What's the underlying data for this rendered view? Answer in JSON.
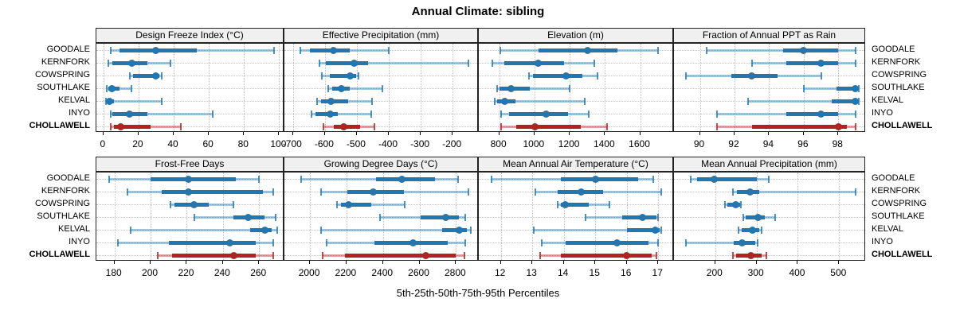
{
  "title": "Annual Climate: sibling",
  "caption": "5th-25th-50th-75th-95th Percentiles",
  "sites": [
    "GOODALE",
    "KERNFORK",
    "COWSPRING",
    "SOUTHLAKE",
    "KELVAL",
    "INYO",
    "CHOLLAWELL"
  ],
  "highlight_site": "CHOLLAWELL",
  "colors": {
    "series": "#1f77b4",
    "highlight": "#b22222",
    "strip_bg": "#f0f0f0",
    "panel_border": "#222222",
    "grid": "#c3c3c3",
    "background": "#ffffff",
    "text": "#000000"
  },
  "chart_data": [
    {
      "type": "dot-whisker",
      "title": "Design Freeze Index (°C)",
      "percentiles": [
        5,
        25,
        50,
        75,
        95
      ],
      "xlim": [
        -4,
        103
      ],
      "ticks": [
        0,
        20,
        40,
        60,
        80,
        100
      ],
      "rows": [
        {
          "site": "GOODALE",
          "values": [
            4,
            9,
            30,
            53,
            97
          ]
        },
        {
          "site": "KERNFORK",
          "values": [
            3,
            5,
            16,
            25,
            38
          ]
        },
        {
          "site": "COWSPRING",
          "values": [
            15,
            17,
            30,
            32,
            33
          ]
        },
        {
          "site": "SOUTHLAKE",
          "values": [
            2,
            3,
            5,
            9,
            16
          ]
        },
        {
          "site": "KELVAL",
          "values": [
            1.5,
            2.5,
            3.5,
            6,
            33
          ]
        },
        {
          "site": "INYO",
          "values": [
            4,
            5,
            15,
            25,
            62
          ]
        },
        {
          "site": "CHOLLAWELL",
          "values": [
            4,
            6,
            10,
            27,
            44
          ]
        }
      ]
    },
    {
      "type": "dot-whisker",
      "title": "Effective Precipitation (mm)",
      "percentiles": [
        5,
        25,
        50,
        75,
        95
      ],
      "xlim": [
        -727,
        -118
      ],
      "ticks": [
        -700,
        -600,
        -500,
        -400,
        -300,
        -200
      ],
      "rows": [
        {
          "site": "GOODALE",
          "values": [
            -678,
            -648,
            -573,
            -523,
            -400
          ]
        },
        {
          "site": "KERNFORK",
          "values": [
            -617,
            -597,
            -508,
            -464,
            -150
          ]
        },
        {
          "site": "COWSPRING",
          "values": [
            -610,
            -585,
            -520,
            -502,
            -496
          ]
        },
        {
          "site": "SOUTHLAKE",
          "values": [
            -590,
            -578,
            -549,
            -522,
            -420
          ]
        },
        {
          "site": "KELVAL",
          "values": [
            -625,
            -613,
            -580,
            -527,
            -452
          ]
        },
        {
          "site": "INYO",
          "values": [
            -642,
            -630,
            -583,
            -560,
            -456
          ]
        },
        {
          "site": "CHOLLAWELL",
          "values": [
            -605,
            -572,
            -540,
            -490,
            -445
          ]
        }
      ]
    },
    {
      "type": "dot-whisker",
      "title": "Elevation (m)",
      "percentiles": [
        5,
        25,
        50,
        75,
        95
      ],
      "xlim": [
        684,
        1792
      ],
      "ticks": [
        800,
        1000,
        1200,
        1400,
        1600
      ],
      "rows": [
        {
          "site": "GOODALE",
          "values": [
            805,
            1025,
            1300,
            1470,
            1700
          ]
        },
        {
          "site": "KERNFORK",
          "values": [
            760,
            830,
            1020,
            1170,
            1340
          ]
        },
        {
          "site": "COWSPRING",
          "values": [
            970,
            990,
            1180,
            1270,
            1360
          ]
        },
        {
          "site": "SOUTHLAKE",
          "values": [
            790,
            800,
            865,
            975,
            1200
          ]
        },
        {
          "site": "KELVAL",
          "values": [
            775,
            790,
            830,
            890,
            1285
          ]
        },
        {
          "site": "INYO",
          "values": [
            810,
            855,
            1065,
            1190,
            1310
          ]
        },
        {
          "site": "CHOLLAWELL",
          "values": [
            810,
            895,
            1005,
            1265,
            1410
          ]
        }
      ]
    },
    {
      "type": "dot-whisker",
      "title": "Fraction of Annual PPT as Rain",
      "percentiles": [
        5,
        25,
        50,
        75,
        95
      ],
      "xlim": [
        88.5,
        99.6
      ],
      "ticks": [
        90,
        92,
        94,
        96,
        98
      ],
      "rows": [
        {
          "site": "GOODALE",
          "values": [
            90.4,
            94.8,
            96,
            98,
            99
          ]
        },
        {
          "site": "KERNFORK",
          "values": [
            93,
            95,
            97,
            98,
            99
          ]
        },
        {
          "site": "COWSPRING",
          "values": [
            89.2,
            91.8,
            93,
            94.5,
            97
          ]
        },
        {
          "site": "SOUTHLAKE",
          "values": [
            96,
            97.9,
            99,
            99.1,
            99.2
          ]
        },
        {
          "site": "KELVAL",
          "values": [
            92.8,
            97.6,
            99,
            99.1,
            99.2
          ]
        },
        {
          "site": "INYO",
          "values": [
            91,
            95,
            97,
            98,
            99
          ]
        },
        {
          "site": "CHOLLAWELL",
          "values": [
            91,
            93,
            98,
            98.5,
            99
          ]
        }
      ]
    },
    {
      "type": "dot-whisker",
      "title": "Frost-Free Days",
      "percentiles": [
        5,
        25,
        50,
        75,
        95
      ],
      "xlim": [
        170,
        274
      ],
      "ticks": [
        180,
        200,
        220,
        240,
        260
      ],
      "rows": [
        {
          "site": "GOODALE",
          "values": [
            177,
            200,
            221,
            247,
            260
          ]
        },
        {
          "site": "KERNFORK",
          "values": [
            187,
            206,
            221,
            262,
            268
          ]
        },
        {
          "site": "COWSPRING",
          "values": [
            211,
            213,
            224,
            232,
            246
          ]
        },
        {
          "site": "SOUTHLAKE",
          "values": [
            224,
            246,
            254,
            263,
            269
          ]
        },
        {
          "site": "KELVAL",
          "values": [
            189,
            255,
            263,
            267,
            270
          ]
        },
        {
          "site": "INYO",
          "values": [
            182,
            210,
            244,
            258,
            268
          ]
        },
        {
          "site": "CHOLLAWELL",
          "values": [
            204,
            212,
            246,
            258,
            268
          ]
        }
      ]
    },
    {
      "type": "dot-whisker",
      "title": "Growing Degree Days (°C)",
      "percentiles": [
        5,
        25,
        50,
        75,
        95
      ],
      "xlim": [
        1860,
        2925
      ],
      "ticks": [
        2000,
        2200,
        2400,
        2600,
        2800
      ],
      "rows": [
        {
          "site": "GOODALE",
          "values": [
            1950,
            2360,
            2505,
            2685,
            2810
          ]
        },
        {
          "site": "KERNFORK",
          "values": [
            2060,
            2205,
            2345,
            2515,
            2870
          ]
        },
        {
          "site": "COWSPRING",
          "values": [
            2150,
            2170,
            2210,
            2335,
            2520
          ]
        },
        {
          "site": "SOUTHLAKE",
          "values": [
            2385,
            2605,
            2745,
            2815,
            2850
          ]
        },
        {
          "site": "KELVAL",
          "values": [
            2060,
            2725,
            2820,
            2860,
            2880
          ]
        },
        {
          "site": "INYO",
          "values": [
            2090,
            2355,
            2565,
            2755,
            2850
          ]
        },
        {
          "site": "CHOLLAWELL",
          "values": [
            2070,
            2190,
            2633,
            2800,
            2845
          ]
        }
      ]
    },
    {
      "type": "dot-whisker",
      "title": "Mean Annual Air Temperature (°C)",
      "percentiles": [
        5,
        25,
        50,
        75,
        95
      ],
      "xlim": [
        11.3,
        17.5
      ],
      "ticks": [
        12,
        13,
        14,
        15,
        16,
        17
      ],
      "rows": [
        {
          "site": "GOODALE",
          "values": [
            11.7,
            13.9,
            15.0,
            16.35,
            16.85
          ]
        },
        {
          "site": "KERNFORK",
          "values": [
            13.1,
            13.8,
            14.55,
            15.25,
            17.1
          ]
        },
        {
          "site": "COWSPRING",
          "values": [
            13.8,
            13.9,
            14.05,
            14.8,
            15.45
          ]
        },
        {
          "site": "SOUTHLAKE",
          "values": [
            14.7,
            15.85,
            16.5,
            16.95,
            17.0
          ]
        },
        {
          "site": "KELVAL",
          "values": [
            13.05,
            16.0,
            16.9,
            17.05,
            17.1
          ]
        },
        {
          "site": "INYO",
          "values": [
            13.3,
            14.05,
            15.7,
            16.7,
            17.0
          ]
        },
        {
          "site": "CHOLLAWELL",
          "values": [
            13.25,
            13.9,
            16.0,
            16.8,
            16.95
          ]
        }
      ]
    },
    {
      "type": "dot-whisker",
      "title": "Mean Annual Precipitation (mm)",
      "percentiles": [
        5,
        25,
        50,
        75,
        95
      ],
      "xlim": [
        100,
        565
      ],
      "ticks": [
        200,
        300,
        400,
        500
      ],
      "rows": [
        {
          "site": "GOODALE",
          "values": [
            140,
            155,
            197,
            300,
            330
          ]
        },
        {
          "site": "KERNFORK",
          "values": [
            243,
            252,
            285,
            306,
            540
          ]
        },
        {
          "site": "COWSPRING",
          "values": [
            224,
            230,
            250,
            260,
            263
          ]
        },
        {
          "site": "SOUTHLAKE",
          "values": [
            268,
            274,
            303,
            320,
            345
          ]
        },
        {
          "site": "KELVAL",
          "values": [
            257,
            264,
            290,
            306,
            313
          ]
        },
        {
          "site": "INYO",
          "values": [
            128,
            245,
            265,
            297,
            302
          ]
        },
        {
          "site": "CHOLLAWELL",
          "values": [
            242,
            250,
            287,
            312,
            324
          ]
        }
      ]
    }
  ]
}
